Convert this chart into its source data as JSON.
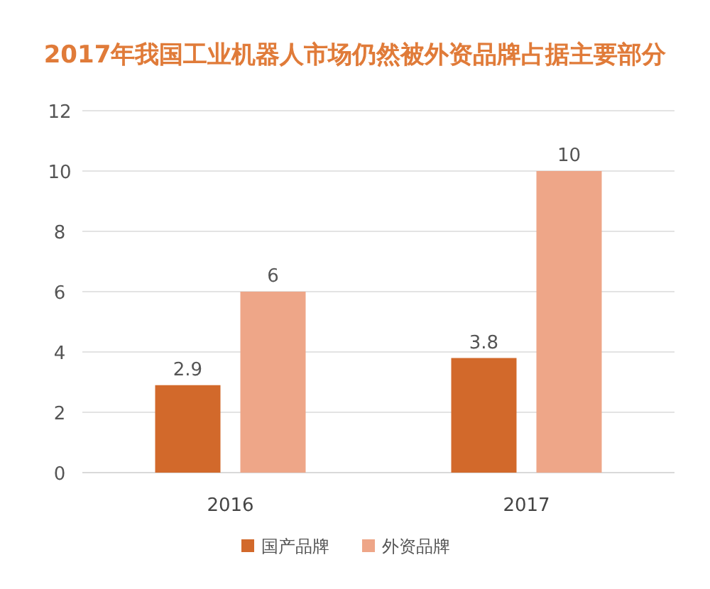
{
  "chart_data": {
    "type": "bar",
    "title": "2017年我国工业机器人市场仍然被外资品牌占据主要部分",
    "categories": [
      "2016",
      "2017"
    ],
    "series": [
      {
        "name": "国产品牌",
        "color": "#d2692b",
        "values": [
          2.9,
          3.8
        ]
      },
      {
        "name": "外资品牌",
        "color": "#eea688",
        "values": [
          6,
          10
        ]
      }
    ],
    "ylim": [
      0,
      12
    ],
    "yticks": [
      0,
      2,
      4,
      6,
      8,
      10,
      12
    ],
    "grid": "y",
    "data_labels": true,
    "legend": "bottom"
  }
}
